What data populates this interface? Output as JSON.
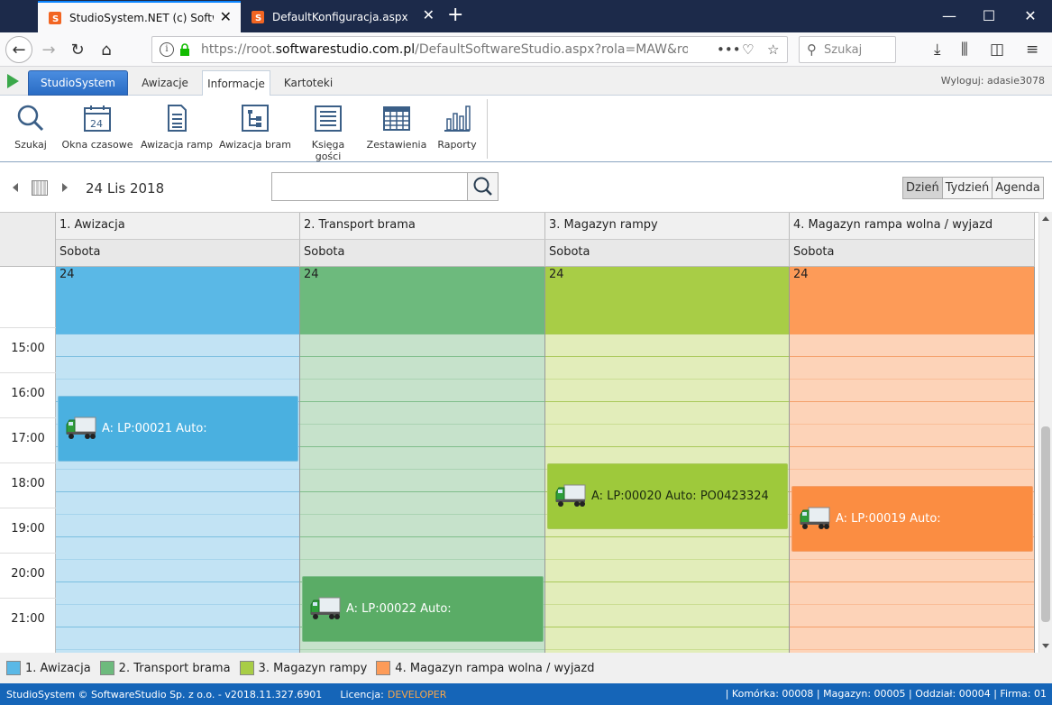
{
  "browser": {
    "tabs": [
      {
        "title": "StudioSystem.NET (c) Software",
        "active": true
      },
      {
        "title": "DefaultKonfiguracja.aspx",
        "active": false
      }
    ],
    "new_tab_symbol": "+",
    "url_prefix": "https://root.",
    "url_host": "softwarestudio.com.pl",
    "url_rest": "/DefaultSoftwareStudio.aspx?rola=MAW&rolasys=MAW",
    "search_placeholder": "Szukaj"
  },
  "app": {
    "tabs": [
      {
        "label": "StudioSystem"
      },
      {
        "label": "Awizacje"
      },
      {
        "label": "Informacje"
      },
      {
        "label": "Kartoteki"
      }
    ],
    "logout": "Wyloguj: adasie3078",
    "ribbon": [
      {
        "label": "Szukaj",
        "icon": "magnifier-icon"
      },
      {
        "label": "Okna czasowe",
        "icon": "calendar-icon"
      },
      {
        "label": "Awizacja ramp",
        "icon": "document-icon"
      },
      {
        "label": "Awizacja bram",
        "icon": "gate-icon"
      },
      {
        "label": "Księga gości",
        "icon": "guestbook-icon"
      },
      {
        "label": "Zestawienia",
        "icon": "table-icon"
      },
      {
        "label": "Raporty",
        "icon": "bar-chart-icon"
      }
    ]
  },
  "scheduler": {
    "date_label": "24 Lis 2018",
    "views": [
      {
        "label": "Dzień",
        "active": true
      },
      {
        "label": "Tydzień",
        "active": false
      },
      {
        "label": "Agenda",
        "active": false
      }
    ],
    "day_name": "Sobota",
    "day_number": "24",
    "times": [
      "15:00",
      "16:00",
      "17:00",
      "18:00",
      "19:00",
      "20:00",
      "21:00"
    ],
    "resources": [
      {
        "name": "1. Awizacja",
        "color": "#5ab8e6",
        "light": "#c2e3f4",
        "line": "#7cbfe0",
        "event_color": "#4ab0e0"
      },
      {
        "name": "2. Transport brama",
        "color": "#6dba7d",
        "light": "#c6e2cb",
        "line": "#7fbe8b",
        "event_color": "#5aac66"
      },
      {
        "name": "3. Magazyn rampy",
        "color": "#a8cd46",
        "light": "#e2edba",
        "line": "#a9c95a",
        "event_color": "#9ec93b"
      },
      {
        "name": "4. Magazyn rampa wolna / wyjazd",
        "color": "#fd9b58",
        "light": "#fdd3b8",
        "line": "#f4a06a",
        "event_color": "#fb8d42"
      }
    ],
    "events": [
      {
        "resource": 0,
        "label": "A: LP:00021 Auto:",
        "start": "16:00",
        "end": "17:30"
      },
      {
        "resource": 2,
        "label": "A: LP:00020 Auto: PO0423324",
        "start": "17:30",
        "end": "19:00"
      },
      {
        "resource": 3,
        "label": "A: LP:00019 Auto:",
        "start": "18:00",
        "end": "19:30"
      },
      {
        "resource": 1,
        "label": "A: LP:00022 Auto:",
        "start": "20:00",
        "end": "21:30"
      }
    ]
  },
  "status": {
    "copyright": "StudioSystem © SoftwareStudio Sp. z o.o. - v2018.11.327.6901",
    "license_label": "Licencja:",
    "license_value": "DEVELOPER",
    "right": "| Komórka: 00008 | Magazyn: 00005 | Oddział: 00004 | Firma: 01"
  }
}
